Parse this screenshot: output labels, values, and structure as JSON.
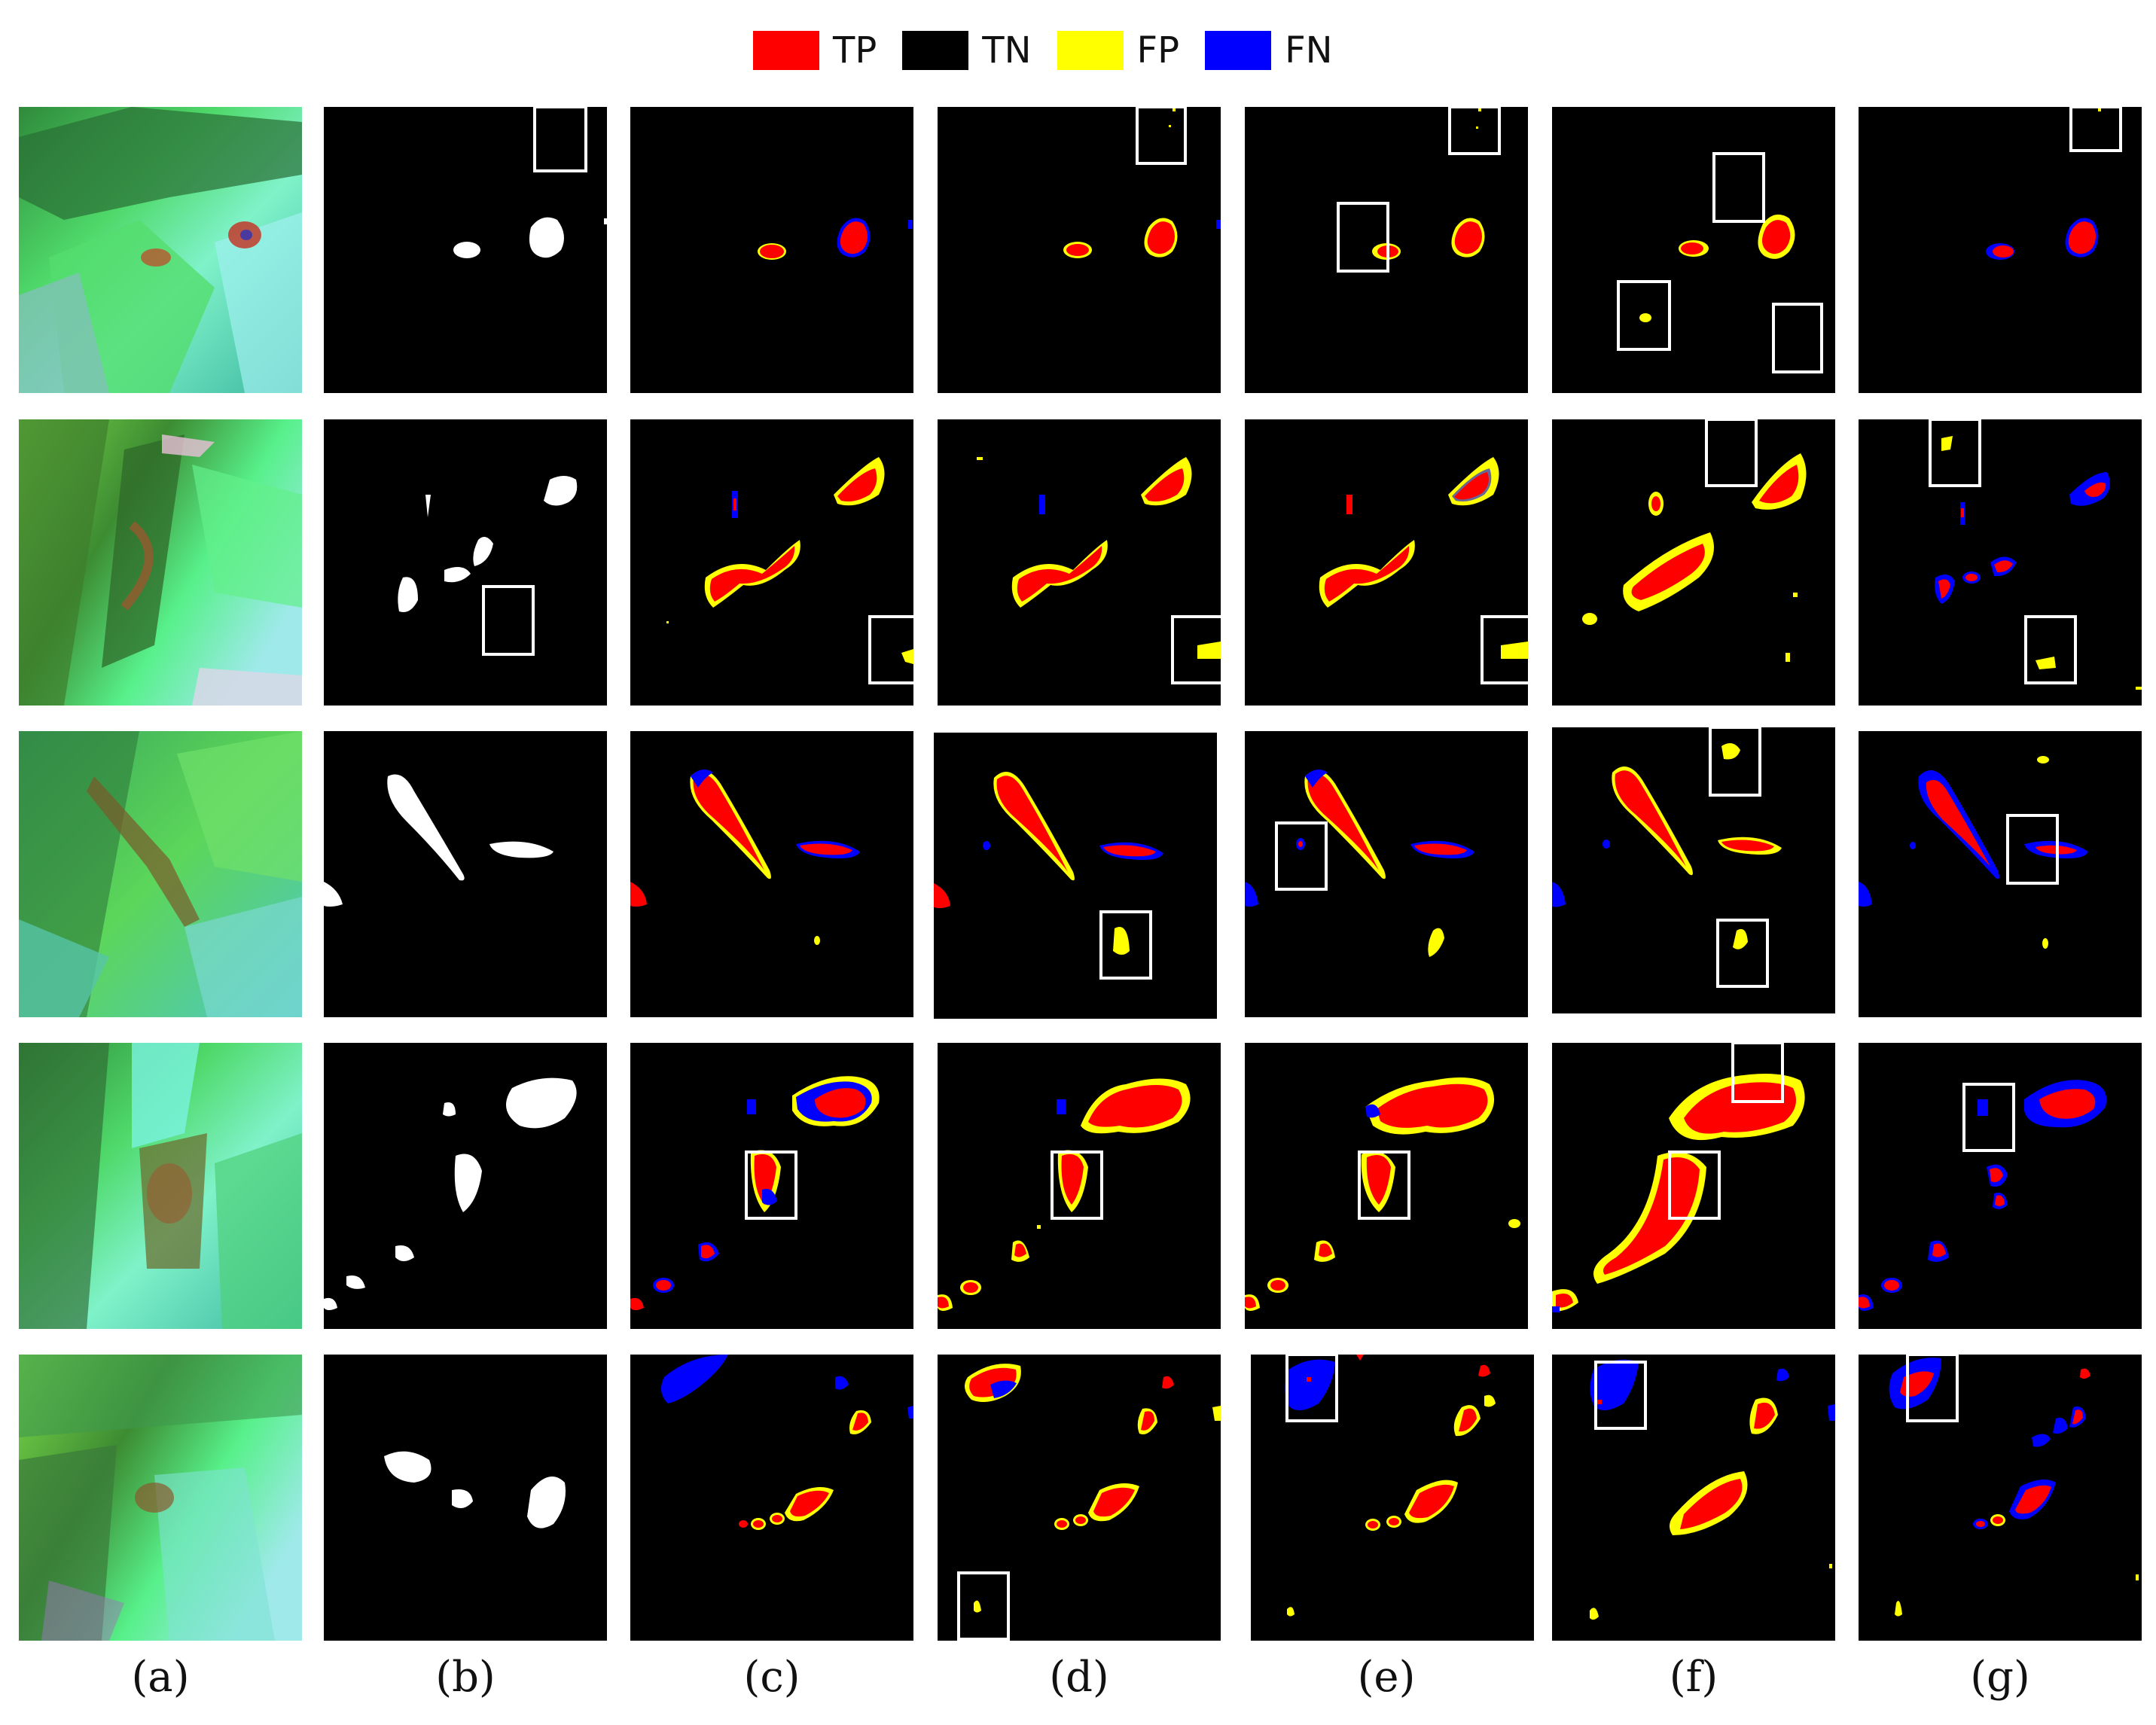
{
  "legend": [
    {
      "label": "TP",
      "color": "#ff0000"
    },
    {
      "label": "TN",
      "color": "#000000"
    },
    {
      "label": "FP",
      "color": "#ffff00"
    },
    {
      "label": "FN",
      "color": "#0000ff"
    }
  ],
  "columns": [
    "(a)",
    "(b)",
    "(c)",
    "(d)",
    "(e)",
    "(f)",
    "(g)"
  ],
  "colors": {
    "tp": "#ff0000",
    "tn": "#000000",
    "fp": "#ffff00",
    "fn": "#0000ff",
    "mask": "#ffffff",
    "highlight_box": "#ffffff"
  }
}
